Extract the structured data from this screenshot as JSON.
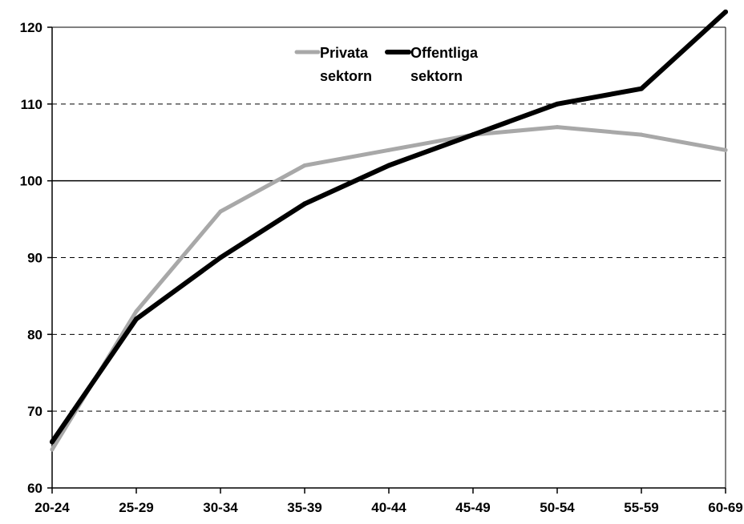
{
  "chart_data": {
    "type": "line",
    "categories": [
      "20-24",
      "25-29",
      "30-34",
      "35-39",
      "40-44",
      "45-49",
      "50-54",
      "55-59",
      "60-69"
    ],
    "series": [
      {
        "name": "Privata sektorn",
        "name_lines": [
          "Privata",
          "sektorn"
        ],
        "color": "#a8a8a8",
        "values": [
          65,
          83,
          96,
          102,
          104,
          106,
          107,
          106,
          104
        ]
      },
      {
        "name": "Offentliga sektorn",
        "name_lines": [
          "Offentliga",
          "sektorn"
        ],
        "color": "#000000",
        "values": [
          66,
          82,
          90,
          97,
          102,
          106,
          110,
          112,
          122
        ]
      }
    ],
    "ylim": [
      60,
      120
    ],
    "yticks": [
      60,
      70,
      80,
      90,
      100,
      110,
      120
    ],
    "ytick_labels": [
      "60",
      "70",
      "80",
      "90",
      "100",
      "110",
      "120"
    ],
    "reference_line": 100,
    "grid": "horizontal dashed",
    "legend_position": "top-center",
    "title": "",
    "xlabel": "",
    "ylabel": ""
  }
}
